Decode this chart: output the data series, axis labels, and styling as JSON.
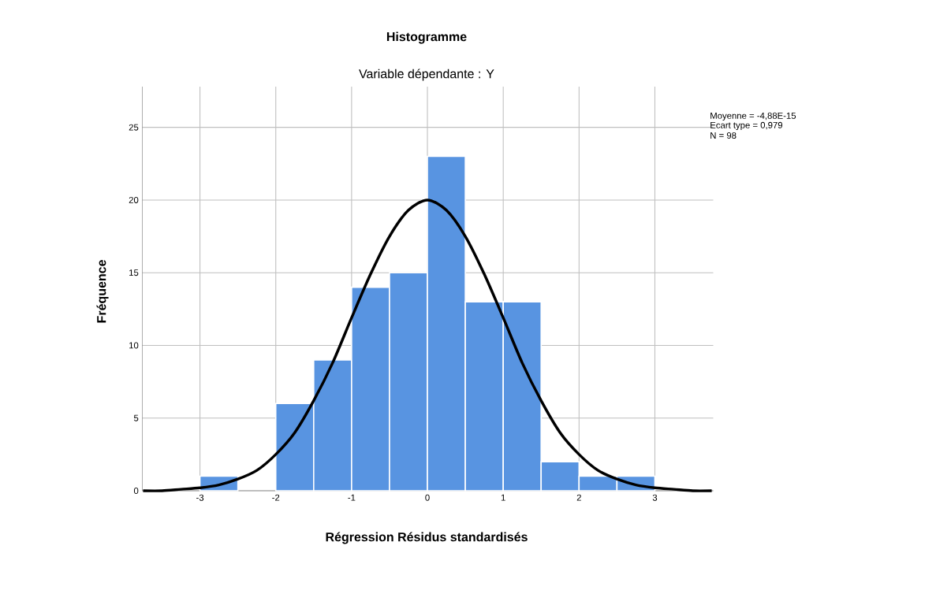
{
  "chart_data": {
    "type": "histogram",
    "title": "Histogramme",
    "subtitle": "Variable dépendante : Y",
    "xlabel": "Régression Résidus standardisés",
    "ylabel": "Fréquence",
    "annotations": [
      "Moyenne = -4,88E-15",
      "Ecart type = 0,979",
      "N = 98"
    ],
    "series": [
      {
        "color": "#5894e1",
        "bins": [
          -3,
          -2.5,
          -2,
          -1.5,
          -1,
          -0.5,
          0,
          0.5,
          1,
          1.5,
          2,
          2.5,
          3
        ],
        "values": [
          1,
          0,
          6,
          9,
          14,
          15,
          23,
          13,
          13,
          2,
          1,
          1
        ]
      },
      {
        "type": "line",
        "color": "#000000",
        "x": [
          -3.75,
          -3.5,
          -3.25,
          -3,
          -2.75,
          -2.5,
          -2.25,
          -2,
          -1.75,
          -1.5,
          -1.25,
          -1,
          -0.75,
          -0.5,
          -0.25,
          0,
          0.25,
          0.5,
          0.75,
          1,
          1.25,
          1.5,
          1.75,
          2,
          2.25,
          2.5,
          2.75,
          3,
          3.25,
          3.5,
          3.75
        ],
        "values": [
          0,
          0,
          0.1,
          0.2,
          0.4,
          0.8,
          1.4,
          2.5,
          4,
          6.2,
          8.8,
          11.9,
          14.9,
          17.5,
          19.3,
          20,
          19.3,
          17.5,
          14.9,
          11.9,
          8.8,
          6.2,
          4,
          2.5,
          1.4,
          0.8,
          0.4,
          0.2,
          0.1,
          0,
          0
        ]
      }
    ],
    "xlim": [
      -3.76,
      3.77
    ],
    "ylim": [
      0,
      27.8
    ],
    "xticks": [
      -3,
      -2,
      -1,
      0,
      1,
      2,
      3
    ],
    "yticks": [
      0,
      5,
      10,
      15,
      20,
      25
    ],
    "grid": true
  }
}
